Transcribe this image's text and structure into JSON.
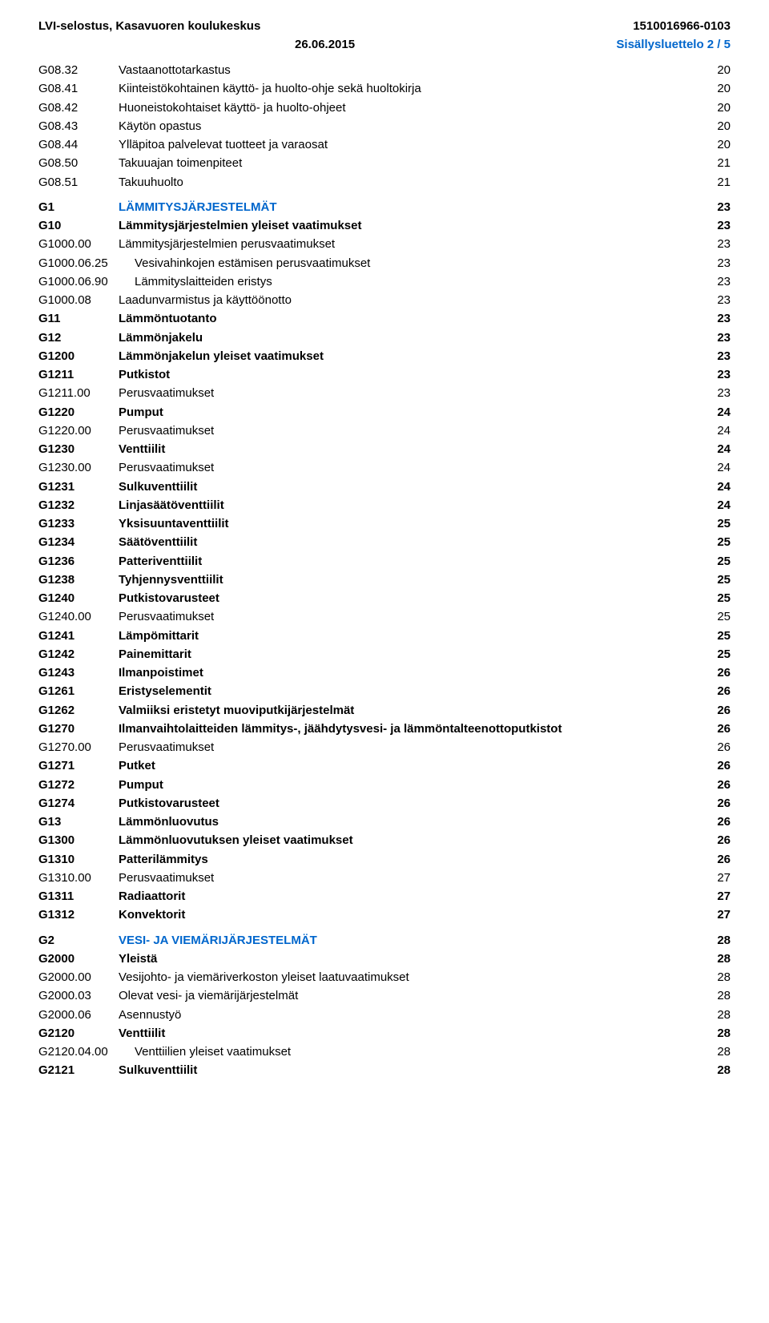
{
  "header": {
    "left": "LVI-selostus, Kasavuoren koulukeskus",
    "right": "1510016966-0103",
    "date": "26.06.2015",
    "toc_label": "Sisällysluettelo 2 / 5"
  },
  "colors": {
    "accent": "#0066cc",
    "text": "#000000",
    "background": "#ffffff"
  },
  "entries": [
    {
      "code": "G08.32",
      "title": "Vastaanottotarkastus",
      "page": "20",
      "style": "normal"
    },
    {
      "code": "G08.41",
      "title": "Kiinteistökohtainen käyttö- ja huolto-ohje sekä huoltokirja",
      "page": "20",
      "style": "normal"
    },
    {
      "code": "G08.42",
      "title": "Huoneistokohtaiset käyttö- ja huolto-ohjeet",
      "page": "20",
      "style": "normal"
    },
    {
      "code": "G08.43",
      "title": "Käytön opastus",
      "page": "20",
      "style": "normal"
    },
    {
      "code": "G08.44",
      "title": "Ylläpitoa palvelevat tuotteet ja varaosat",
      "page": "20",
      "style": "normal"
    },
    {
      "code": "G08.50",
      "title": "Takuuajan toimenpiteet",
      "page": "21",
      "style": "normal"
    },
    {
      "code": "G08.51",
      "title": "Takuuhuolto",
      "page": "21",
      "style": "normal"
    },
    {
      "code": "G1",
      "title": "LÄMMITYSJÄRJESTELMÄT",
      "page": "23",
      "style": "section"
    },
    {
      "code": "G10",
      "title": "Lämmitysjärjestelmien yleiset vaatimukset",
      "page": "23",
      "style": "bold"
    },
    {
      "code": "G1000.00",
      "title": "Lämmitysjärjestelmien perusvaatimukset",
      "page": "23",
      "style": "normal"
    },
    {
      "code": "G1000.06.25",
      "title": "Vesivahinkojen estämisen perusvaatimukset",
      "page": "23",
      "style": "normal"
    },
    {
      "code": "G1000.06.90",
      "title": "Lämmityslaitteiden eristys",
      "page": "23",
      "style": "normal"
    },
    {
      "code": "G1000.08",
      "title": "Laadunvarmistus ja käyttöönotto",
      "page": "23",
      "style": "normal"
    },
    {
      "code": "G11",
      "title": "Lämmöntuotanto",
      "page": "23",
      "style": "bold"
    },
    {
      "code": "G12",
      "title": "Lämmönjakelu",
      "page": "23",
      "style": "bold"
    },
    {
      "code": "G1200",
      "title": "Lämmönjakelun yleiset vaatimukset",
      "page": "23",
      "style": "bold"
    },
    {
      "code": "G1211",
      "title": "Putkistot",
      "page": "23",
      "style": "bold"
    },
    {
      "code": "G1211.00",
      "title": "Perusvaatimukset",
      "page": "23",
      "style": "normal"
    },
    {
      "code": "G1220",
      "title": "Pumput",
      "page": "24",
      "style": "bold"
    },
    {
      "code": "G1220.00",
      "title": "Perusvaatimukset",
      "page": "24",
      "style": "normal"
    },
    {
      "code": "G1230",
      "title": "Venttiilit",
      "page": "24",
      "style": "bold"
    },
    {
      "code": "G1230.00",
      "title": "Perusvaatimukset",
      "page": "24",
      "style": "normal"
    },
    {
      "code": "G1231",
      "title": "Sulkuventtiilit",
      "page": "24",
      "style": "bold"
    },
    {
      "code": "G1232",
      "title": "Linjasäätöventtiilit",
      "page": "24",
      "style": "bold"
    },
    {
      "code": "G1233",
      "title": "Yksisuuntaventtiilit",
      "page": "25",
      "style": "bold"
    },
    {
      "code": "G1234",
      "title": "Säätöventtiilit",
      "page": "25",
      "style": "bold"
    },
    {
      "code": "G1236",
      "title": "Patteriventtiilit",
      "page": "25",
      "style": "bold"
    },
    {
      "code": "G1238",
      "title": "Tyhjennysventtiilit",
      "page": "25",
      "style": "bold"
    },
    {
      "code": "G1240",
      "title": "Putkistovarusteet",
      "page": "25",
      "style": "bold"
    },
    {
      "code": "G1240.00",
      "title": "Perusvaatimukset",
      "page": "25",
      "style": "normal"
    },
    {
      "code": "G1241",
      "title": "Lämpömittarit",
      "page": "25",
      "style": "bold"
    },
    {
      "code": "G1242",
      "title": "Painemittarit",
      "page": "25",
      "style": "bold"
    },
    {
      "code": "G1243",
      "title": "Ilmanpoistimet",
      "page": "26",
      "style": "bold"
    },
    {
      "code": "G1261",
      "title": "Eristyselementit",
      "page": "26",
      "style": "bold"
    },
    {
      "code": "G1262",
      "title": "Valmiiksi eristetyt muoviputkijärjestelmät",
      "page": "26",
      "style": "bold"
    },
    {
      "code": "G1270",
      "title": "Ilmanvaihtolaitteiden lämmitys-, jäähdytysvesi- ja lämmöntalteenottoputkistot",
      "page": "26",
      "style": "bold",
      "multiline": true
    },
    {
      "code": "G1270.00",
      "title": "Perusvaatimukset",
      "page": "26",
      "style": "normal"
    },
    {
      "code": "G1271",
      "title": "Putket",
      "page": "26",
      "style": "bold"
    },
    {
      "code": "G1272",
      "title": "Pumput",
      "page": "26",
      "style": "bold"
    },
    {
      "code": "G1274",
      "title": "Putkistovarusteet",
      "page": "26",
      "style": "bold"
    },
    {
      "code": "G13",
      "title": "Lämmönluovutus",
      "page": "26",
      "style": "bold"
    },
    {
      "code": "G1300",
      "title": "Lämmönluovutuksen yleiset vaatimukset",
      "page": "26",
      "style": "bold"
    },
    {
      "code": "G1310",
      "title": "Patterilämmitys",
      "page": "26",
      "style": "bold"
    },
    {
      "code": "G1310.00",
      "title": "Perusvaatimukset",
      "page": "27",
      "style": "normal"
    },
    {
      "code": "G1311",
      "title": "Radiaattorit",
      "page": "27",
      "style": "bold"
    },
    {
      "code": "G1312",
      "title": "Konvektorit",
      "page": "27",
      "style": "bold"
    },
    {
      "code": "G2",
      "title": "VESI- JA VIEMÄRIJÄRJESTELMÄT",
      "page": "28",
      "style": "section"
    },
    {
      "code": "G2000",
      "title": "Yleistä",
      "page": "28",
      "style": "bold"
    },
    {
      "code": "G2000.00",
      "title": "Vesijohto- ja viemäriverkoston yleiset laatuvaatimukset",
      "page": "28",
      "style": "normal"
    },
    {
      "code": "G2000.03",
      "title": "Olevat vesi- ja viemärijärjestelmät",
      "page": "28",
      "style": "normal"
    },
    {
      "code": "G2000.06",
      "title": "Asennustyö",
      "page": "28",
      "style": "normal"
    },
    {
      "code": "G2120",
      "title": "Venttiilit",
      "page": "28",
      "style": "bold"
    },
    {
      "code": "G2120.04.00",
      "title": "Venttiilien yleiset vaatimukset",
      "page": "28",
      "style": "normal"
    },
    {
      "code": "G2121",
      "title": "Sulkuventtiilit",
      "page": "28",
      "style": "bold"
    }
  ]
}
